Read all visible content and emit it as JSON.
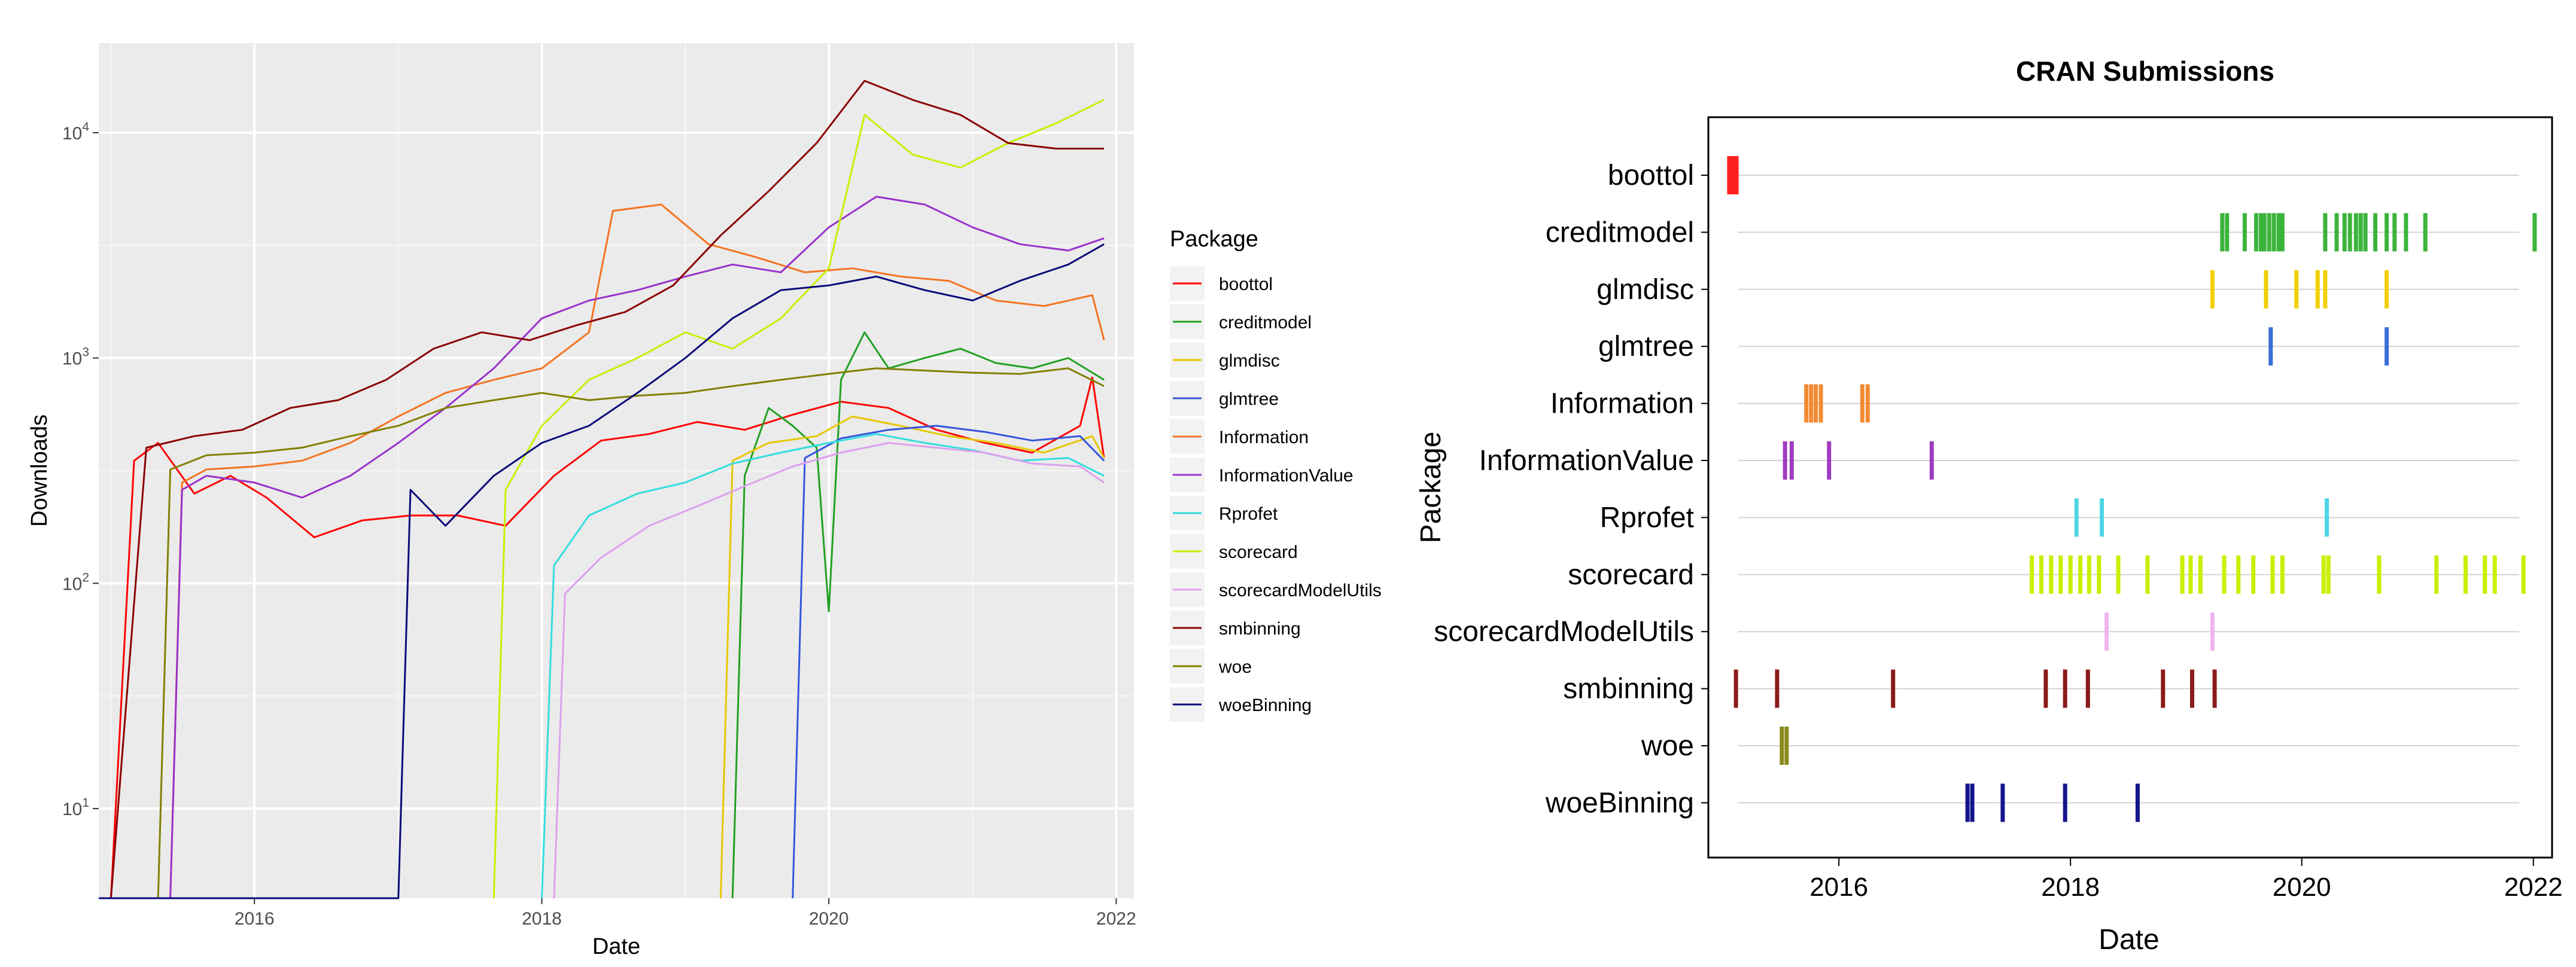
{
  "chart_data": [
    {
      "type": "line",
      "title": "",
      "xlabel": "Date",
      "ylabel": "Downloads",
      "y_scale": "log10",
      "ylim": [
        4,
        25000
      ],
      "xlim": [
        "2014-12-01",
        "2022-02-15"
      ],
      "x_ticks": [
        "2016",
        "2018",
        "2020",
        "2022"
      ],
      "y_ticks": [
        {
          "value": 10,
          "base": "10",
          "exp": "1"
        },
        {
          "value": 100,
          "base": "10",
          "exp": "2"
        },
        {
          "value": 1000,
          "base": "10",
          "exp": "3"
        },
        {
          "value": 10000,
          "base": "10",
          "exp": "4"
        }
      ],
      "grid": true,
      "legend_placement": "right",
      "legend_title": "Package",
      "series": [
        {
          "name": "boottol",
          "color": "#ff0000",
          "x": [
            "2015-01",
            "2015-03",
            "2015-05",
            "2015-08",
            "2015-11",
            "2016-02",
            "2016-06",
            "2016-10",
            "2017-02",
            "2017-06",
            "2017-10",
            "2018-02",
            "2018-06",
            "2018-10",
            "2019-02",
            "2019-06",
            "2019-10",
            "2020-02",
            "2020-06",
            "2020-10",
            "2021-02",
            "2021-06",
            "2021-10",
            "2021-11",
            "2021-12"
          ],
          "y": [
            4,
            350,
            420,
            250,
            300,
            240,
            160,
            190,
            200,
            200,
            180,
            300,
            430,
            460,
            520,
            480,
            560,
            640,
            600,
            480,
            420,
            380,
            500,
            820,
            360
          ]
        },
        {
          "name": "creditmodel",
          "color": "#22a022",
          "x": [
            "2019-05",
            "2019-06",
            "2019-08",
            "2019-10",
            "2019-12",
            "2020-01",
            "2020-02",
            "2020-04",
            "2020-06",
            "2020-09",
            "2020-12",
            "2021-03",
            "2021-06",
            "2021-09",
            "2021-12"
          ],
          "y": [
            4,
            300,
            600,
            500,
            400,
            75,
            800,
            1300,
            900,
            1000,
            1100,
            950,
            900,
            1000,
            800
          ]
        },
        {
          "name": "glmdisc",
          "color": "#e6c800",
          "x": [
            "2019-04",
            "2019-05",
            "2019-08",
            "2019-12",
            "2020-03",
            "2020-07",
            "2020-11",
            "2021-03",
            "2021-07",
            "2021-11",
            "2021-12"
          ],
          "y": [
            4,
            350,
            420,
            450,
            550,
            500,
            450,
            420,
            380,
            450,
            360
          ]
        },
        {
          "name": "glmtree",
          "color": "#3355dd",
          "x": [
            "2019-10",
            "2019-11",
            "2020-02",
            "2020-06",
            "2020-10",
            "2021-02",
            "2021-06",
            "2021-10",
            "2021-12"
          ],
          "y": [
            4,
            360,
            440,
            480,
            500,
            470,
            430,
            450,
            350
          ]
        },
        {
          "name": "Information",
          "color": "#f47321",
          "x": [
            "2015-06",
            "2015-07",
            "2015-09",
            "2016-01",
            "2016-05",
            "2016-09",
            "2017-01",
            "2017-05",
            "2017-09",
            "2018-01",
            "2018-05",
            "2018-07",
            "2018-11",
            "2019-03",
            "2019-07",
            "2019-11",
            "2020-03",
            "2020-07",
            "2020-11",
            "2021-03",
            "2021-07",
            "2021-11",
            "2021-12"
          ],
          "y": [
            4,
            280,
            320,
            330,
            350,
            420,
            550,
            700,
            800,
            900,
            1300,
            4500,
            4800,
            3200,
            2800,
            2400,
            2500,
            2300,
            2200,
            1800,
            1700,
            1900,
            1200
          ]
        },
        {
          "name": "InformationValue",
          "color": "#9932cc",
          "x": [
            "2015-06",
            "2015-07",
            "2015-09",
            "2016-01",
            "2016-05",
            "2016-09",
            "2017-01",
            "2017-05",
            "2017-09",
            "2018-01",
            "2018-05",
            "2018-09",
            "2019-01",
            "2019-05",
            "2019-09",
            "2020-01",
            "2020-05",
            "2020-09",
            "2021-01",
            "2021-05",
            "2021-09",
            "2021-12"
          ],
          "y": [
            4,
            260,
            300,
            280,
            240,
            300,
            420,
            600,
            900,
            1500,
            1800,
            2000,
            2300,
            2600,
            2400,
            3800,
            5200,
            4800,
            3800,
            3200,
            3000,
            3400
          ]
        },
        {
          "name": "Rprofet",
          "color": "#33dddd",
          "x": [
            "2018-01",
            "2018-02",
            "2018-05",
            "2018-09",
            "2019-01",
            "2019-05",
            "2019-09",
            "2020-01",
            "2020-05",
            "2020-09",
            "2021-01",
            "2021-05",
            "2021-09",
            "2021-12"
          ],
          "y": [
            4,
            120,
            200,
            250,
            280,
            340,
            380,
            420,
            460,
            420,
            390,
            350,
            360,
            300
          ]
        },
        {
          "name": "scorecard",
          "color": "#c6f000",
          "x": [
            "2017-09",
            "2017-10",
            "2018-01",
            "2018-05",
            "2018-09",
            "2019-01",
            "2019-05",
            "2019-09",
            "2020-01",
            "2020-04",
            "2020-08",
            "2020-12",
            "2021-04",
            "2021-08",
            "2021-12"
          ],
          "y": [
            4,
            260,
            500,
            800,
            1000,
            1300,
            1100,
            1500,
            2500,
            12000,
            8000,
            7000,
            9000,
            11000,
            14000
          ]
        },
        {
          "name": "scorecardModelUtils",
          "color": "#dda0ee",
          "x": [
            "2018-02",
            "2018-03",
            "2018-06",
            "2018-10",
            "2019-02",
            "2019-06",
            "2019-10",
            "2020-02",
            "2020-06",
            "2020-10",
            "2021-02",
            "2021-06",
            "2021-10",
            "2021-12"
          ],
          "y": [
            4,
            90,
            130,
            180,
            220,
            270,
            330,
            380,
            420,
            400,
            380,
            340,
            330,
            280
          ]
        },
        {
          "name": "smbinning",
          "color": "#8b0000",
          "x": [
            "2015-01",
            "2015-04",
            "2015-08",
            "2015-12",
            "2016-04",
            "2016-08",
            "2016-12",
            "2017-04",
            "2017-08",
            "2017-12",
            "2018-04",
            "2018-08",
            "2018-12",
            "2019-04",
            "2019-08",
            "2019-12",
            "2020-04",
            "2020-08",
            "2020-12",
            "2021-04",
            "2021-08",
            "2021-12"
          ],
          "y": [
            4,
            400,
            450,
            480,
            600,
            650,
            800,
            1100,
            1300,
            1200,
            1400,
            1600,
            2100,
            3500,
            5500,
            9000,
            17000,
            14000,
            12000,
            9000,
            8500,
            8500
          ]
        },
        {
          "name": "woe",
          "color": "#808000",
          "x": [
            "2015-05",
            "2015-06",
            "2015-09",
            "2016-01",
            "2016-05",
            "2016-09",
            "2017-01",
            "2017-05",
            "2017-09",
            "2018-01",
            "2018-05",
            "2018-09",
            "2019-01",
            "2019-05",
            "2019-09",
            "2020-01",
            "2020-05",
            "2020-09",
            "2021-01",
            "2021-05",
            "2021-09",
            "2021-12"
          ],
          "y": [
            4,
            320,
            370,
            380,
            400,
            450,
            500,
            600,
            650,
            700,
            650,
            680,
            700,
            750,
            800,
            850,
            900,
            880,
            860,
            850,
            900,
            750
          ]
        },
        {
          "name": "woeBinning",
          "color": "#0a0a7a",
          "x": [
            "2014-12",
            "2017-01",
            "2017-02",
            "2017-05",
            "2017-09",
            "2018-01",
            "2018-05",
            "2018-09",
            "2019-01",
            "2019-05",
            "2019-09",
            "2020-01",
            "2020-05",
            "2020-09",
            "2021-01",
            "2021-05",
            "2021-09",
            "2021-12"
          ],
          "y": [
            4,
            4,
            260,
            180,
            300,
            420,
            500,
            700,
            1000,
            1500,
            2000,
            2100,
            2300,
            2000,
            1800,
            2200,
            2600,
            3200
          ]
        }
      ]
    },
    {
      "type": "scatter",
      "title": "CRAN Submissions",
      "xlabel": "Date",
      "ylabel": "Package",
      "xlim": [
        "2014-11-15",
        "2022-03-01"
      ],
      "x_ticks": [
        "2016",
        "2018",
        "2020",
        "2022"
      ],
      "grid": true,
      "categories": [
        "boottol",
        "creditmodel",
        "glmdisc",
        "glmtree",
        "Information",
        "InformationValue",
        "Rprofet",
        "scorecard",
        "scorecardModelUtils",
        "smbinning",
        "woe",
        "woeBinning"
      ],
      "series": [
        {
          "name": "boottol",
          "color": "#ff2020",
          "dates": [
            "2015-01-20",
            "2015-02-01",
            "2015-02-12"
          ]
        },
        {
          "name": "creditmodel",
          "color": "#3cb43c",
          "dates": [
            "2019-04-25",
            "2019-05-10",
            "2019-07-05",
            "2019-08-10",
            "2019-08-25",
            "2019-09-05",
            "2019-09-20",
            "2019-10-05",
            "2019-10-20",
            "2019-11-01",
            "2020-03-15",
            "2020-04-20",
            "2020-05-15",
            "2020-06-01",
            "2020-06-20",
            "2020-07-05",
            "2020-07-20",
            "2020-08-20",
            "2020-09-25",
            "2020-10-20",
            "2020-11-25",
            "2021-01-25",
            "2022-01-05"
          ]
        },
        {
          "name": "glmdisc",
          "color": "#f0d000",
          "dates": [
            "2019-03-25",
            "2019-09-10",
            "2019-12-15",
            "2020-02-20",
            "2020-03-15",
            "2020-09-25"
          ]
        },
        {
          "name": "glmtree",
          "color": "#3a6ed8",
          "dates": [
            "2019-09-25",
            "2020-09-25"
          ]
        },
        {
          "name": "Information",
          "color": "#f28a33",
          "dates": [
            "2015-09-20",
            "2015-10-05",
            "2015-10-20",
            "2015-11-05",
            "2016-03-15",
            "2016-04-01"
          ]
        },
        {
          "name": "InformationValue",
          "color": "#9e3cc0",
          "dates": [
            "2015-07-15",
            "2015-08-05",
            "2015-12-01",
            "2016-10-20"
          ]
        },
        {
          "name": "Rprofet",
          "color": "#4dd6e6",
          "dates": [
            "2018-01-20",
            "2018-04-10",
            "2020-03-20"
          ]
        },
        {
          "name": "scorecard",
          "color": "#c8f000",
          "dates": [
            "2017-09-01",
            "2017-10-01",
            "2017-11-01",
            "2017-12-01",
            "2018-01-01",
            "2018-02-01",
            "2018-03-01",
            "2018-04-01",
            "2018-06-01",
            "2018-09-01",
            "2018-12-20",
            "2019-01-15",
            "2019-02-15",
            "2019-05-01",
            "2019-06-15",
            "2019-08-01",
            "2019-10-01",
            "2019-11-01",
            "2020-03-10",
            "2020-03-25",
            "2020-09-01",
            "2021-03-01",
            "2021-06-01",
            "2021-08-01",
            "2021-09-01",
            "2021-12-01"
          ]
        },
        {
          "name": "scorecardModelUtils",
          "color": "#f0b4f0",
          "dates": [
            "2018-04-25",
            "2019-03-25"
          ]
        },
        {
          "name": "smbinning",
          "color": "#8b1a1a",
          "dates": [
            "2015-02-10",
            "2015-06-20",
            "2016-06-20",
            "2017-10-15",
            "2017-12-15",
            "2018-02-25",
            "2018-10-20",
            "2019-01-20",
            "2019-04-01"
          ]
        },
        {
          "name": "woe",
          "color": "#8a8a1e",
          "dates": [
            "2015-07-05",
            "2015-07-20"
          ]
        },
        {
          "name": "woeBinning",
          "color": "#14148c",
          "dates": [
            "2017-02-10",
            "2017-02-25",
            "2017-06-01",
            "2017-12-15",
            "2018-08-01"
          ]
        }
      ]
    }
  ]
}
